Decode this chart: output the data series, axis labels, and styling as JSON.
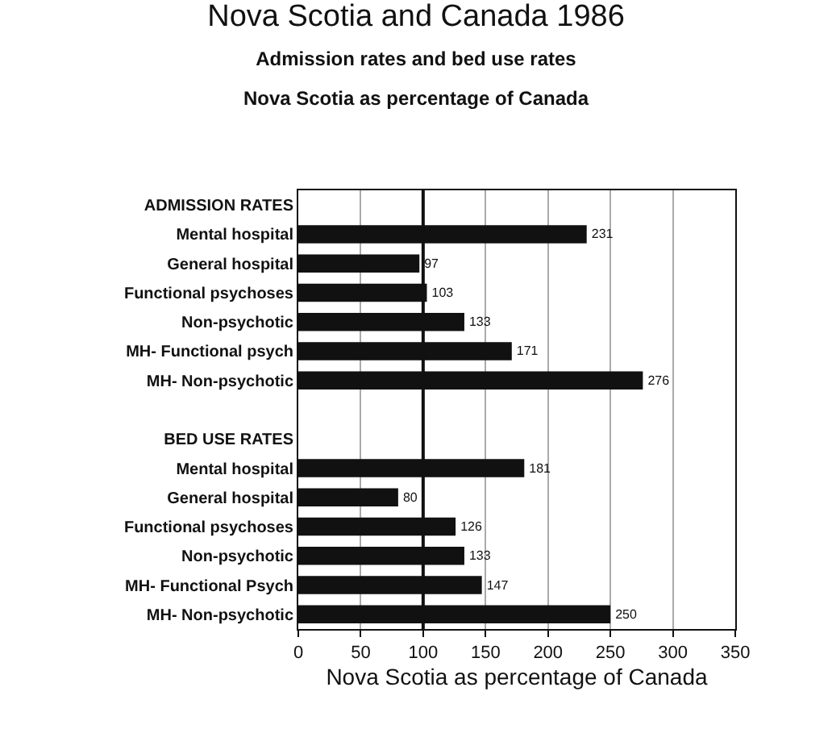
{
  "chart_data": {
    "type": "bar",
    "orientation": "horizontal",
    "title": "Nova Scotia and Canada 1986",
    "subtitle": "Admission rates and bed use rates\nNova Scotia as percentage of Canada",
    "xlabel": "Nova Scotia as percentage of Canada",
    "categories": [
      "ADMISSION RATES",
      "Mental hospital",
      "General hospital",
      "Functional psychoses",
      "Non-psychotic",
      "MH- Functional psych",
      "MH- Non-psychotic",
      null,
      "BED USE RATES",
      "Mental hospital",
      "General hospital",
      "Functional psychoses",
      "Non-psychotic",
      "MH- Functional Psych",
      "MH- Non-psychotic"
    ],
    "values": [
      null,
      231,
      97,
      103,
      133,
      171,
      276,
      null,
      null,
      181,
      80,
      126,
      133,
      147,
      250
    ],
    "color": "#111111",
    "data_labels": true,
    "xlim": [
      0,
      350
    ],
    "xticks": [
      0,
      50,
      100,
      150,
      200,
      250,
      300,
      350
    ],
    "grid": "x",
    "ref_lines": [
      {
        "axis": "x",
        "value": 100,
        "color": "#111111"
      }
    ]
  }
}
